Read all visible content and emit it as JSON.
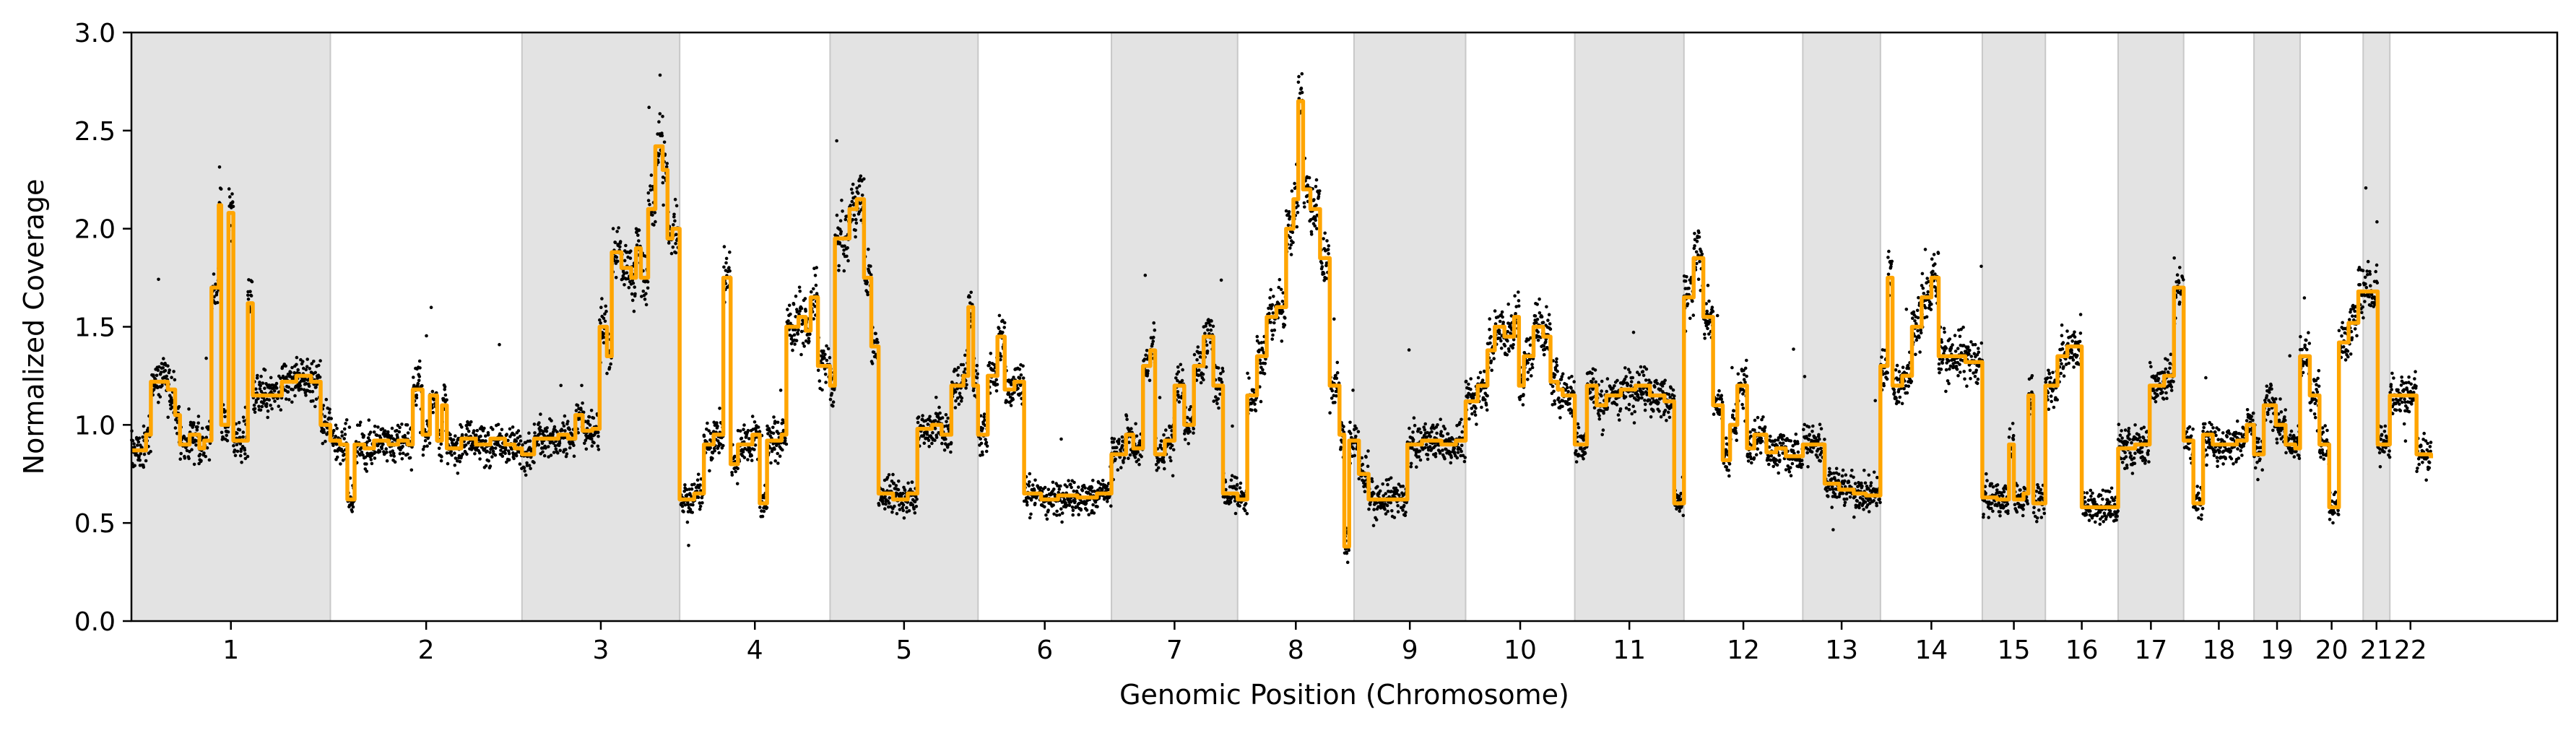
{
  "chart_data": {
    "type": "scatter",
    "title": "",
    "xlabel": "Genomic Position (Chromosome)",
    "ylabel": "Normalized Coverage",
    "ylim": [
      0.0,
      3.0
    ],
    "yticks": [
      "0.0",
      "0.5",
      "1.0",
      "1.5",
      "2.0",
      "2.5",
      "3.0"
    ],
    "xlim": [
      0,
      100
    ],
    "grid": false,
    "legend": "none",
    "colors": {
      "points": "#000000",
      "segments": "#FFA500",
      "band": "#e3e3e3",
      "band_edge": "#c8c8c8"
    },
    "chromosomes": [
      {
        "label": "1",
        "start": 0.0,
        "end": 8.2,
        "shaded": true
      },
      {
        "label": "2",
        "start": 8.2,
        "end": 16.1,
        "shaded": false
      },
      {
        "label": "3",
        "start": 16.1,
        "end": 22.6,
        "shaded": true
      },
      {
        "label": "4",
        "start": 22.6,
        "end": 28.8,
        "shaded": false
      },
      {
        "label": "5",
        "start": 28.8,
        "end": 34.9,
        "shaded": true
      },
      {
        "label": "6",
        "start": 34.9,
        "end": 40.4,
        "shaded": false
      },
      {
        "label": "7",
        "start": 40.4,
        "end": 45.6,
        "shaded": true
      },
      {
        "label": "8",
        "start": 45.6,
        "end": 50.4,
        "shaded": false
      },
      {
        "label": "9",
        "start": 50.4,
        "end": 55.0,
        "shaded": true
      },
      {
        "label": "10",
        "start": 55.0,
        "end": 59.5,
        "shaded": false
      },
      {
        "label": "11",
        "start": 59.5,
        "end": 64.0,
        "shaded": true
      },
      {
        "label": "12",
        "start": 64.0,
        "end": 68.9,
        "shaded": false
      },
      {
        "label": "13",
        "start": 68.9,
        "end": 72.1,
        "shaded": true
      },
      {
        "label": "14",
        "start": 72.1,
        "end": 76.3,
        "shaded": false
      },
      {
        "label": "15",
        "start": 76.3,
        "end": 78.9,
        "shaded": true
      },
      {
        "label": "16",
        "start": 78.9,
        "end": 81.9,
        "shaded": false
      },
      {
        "label": "17",
        "start": 81.9,
        "end": 84.6,
        "shaded": true
      },
      {
        "label": "18",
        "start": 84.6,
        "end": 87.5,
        "shaded": false
      },
      {
        "label": "19",
        "start": 87.5,
        "end": 89.4,
        "shaded": true
      },
      {
        "label": "20",
        "start": 89.4,
        "end": 92.0,
        "shaded": false
      },
      {
        "label": "21",
        "start": 92.0,
        "end": 93.1,
        "shaded": true
      },
      {
        "label": "22",
        "start": 93.1,
        "end": 94.8,
        "shaded": false
      }
    ],
    "segments": [
      [
        0.0,
        0.87
      ],
      [
        0.6,
        0.95
      ],
      [
        0.8,
        1.22
      ],
      [
        1.5,
        1.18
      ],
      [
        1.8,
        1.05
      ],
      [
        2.0,
        0.9
      ],
      [
        2.4,
        0.95
      ],
      [
        2.8,
        0.88
      ],
      [
        3.0,
        0.92
      ],
      [
        3.3,
        1.7
      ],
      [
        3.6,
        2.12
      ],
      [
        3.7,
        1.0
      ],
      [
        4.0,
        2.08
      ],
      [
        4.2,
        0.92
      ],
      [
        4.8,
        1.62
      ],
      [
        5.0,
        1.15
      ],
      [
        6.0,
        1.15
      ],
      [
        6.2,
        1.22
      ],
      [
        6.8,
        1.25
      ],
      [
        7.4,
        1.22
      ],
      [
        7.8,
        1.0
      ],
      [
        8.2,
        0.92
      ],
      [
        8.6,
        0.9
      ],
      [
        8.9,
        0.62
      ],
      [
        9.2,
        0.9
      ],
      [
        9.6,
        0.88
      ],
      [
        10.0,
        0.92
      ],
      [
        10.6,
        0.9
      ],
      [
        11.0,
        0.92
      ],
      [
        11.4,
        0.9
      ],
      [
        11.6,
        1.18
      ],
      [
        12.0,
        0.95
      ],
      [
        12.3,
        1.15
      ],
      [
        12.6,
        0.92
      ],
      [
        12.8,
        1.1
      ],
      [
        13.0,
        0.88
      ],
      [
        13.6,
        0.93
      ],
      [
        14.2,
        0.9
      ],
      [
        14.8,
        0.93
      ],
      [
        15.4,
        0.9
      ],
      [
        15.8,
        0.88
      ],
      [
        16.1,
        0.85
      ],
      [
        16.6,
        0.93
      ],
      [
        17.2,
        0.93
      ],
      [
        17.6,
        0.95
      ],
      [
        18.0,
        0.93
      ],
      [
        18.3,
        1.05
      ],
      [
        18.6,
        0.97
      ],
      [
        19.0,
        0.98
      ],
      [
        19.3,
        1.5
      ],
      [
        19.6,
        1.35
      ],
      [
        19.8,
        1.88
      ],
      [
        20.2,
        1.8
      ],
      [
        20.6,
        1.75
      ],
      [
        20.8,
        1.9
      ],
      [
        21.0,
        1.75
      ],
      [
        21.3,
        2.1
      ],
      [
        21.6,
        2.42
      ],
      [
        21.9,
        2.3
      ],
      [
        22.1,
        1.95
      ],
      [
        22.3,
        2.0
      ],
      [
        22.6,
        0.62
      ],
      [
        23.2,
        0.65
      ],
      [
        23.6,
        0.9
      ],
      [
        24.0,
        0.95
      ],
      [
        24.4,
        1.75
      ],
      [
        24.7,
        0.8
      ],
      [
        25.0,
        0.9
      ],
      [
        25.6,
        0.95
      ],
      [
        25.9,
        0.6
      ],
      [
        26.2,
        0.92
      ],
      [
        26.8,
        0.95
      ],
      [
        27.0,
        1.5
      ],
      [
        27.5,
        1.55
      ],
      [
        27.8,
        1.48
      ],
      [
        28.0,
        1.65
      ],
      [
        28.3,
        1.3
      ],
      [
        28.8,
        1.2
      ],
      [
        29.0,
        1.95
      ],
      [
        29.6,
        2.1
      ],
      [
        29.9,
        2.15
      ],
      [
        30.2,
        1.75
      ],
      [
        30.5,
        1.4
      ],
      [
        30.8,
        0.65
      ],
      [
        31.4,
        0.62
      ],
      [
        32.0,
        0.65
      ],
      [
        32.4,
        0.98
      ],
      [
        33.0,
        1.0
      ],
      [
        33.4,
        0.95
      ],
      [
        33.8,
        1.2
      ],
      [
        34.3,
        1.25
      ],
      [
        34.5,
        1.6
      ],
      [
        34.7,
        1.2
      ],
      [
        34.9,
        0.95
      ],
      [
        35.3,
        1.25
      ],
      [
        35.7,
        1.45
      ],
      [
        36.0,
        1.18
      ],
      [
        36.4,
        1.22
      ],
      [
        36.8,
        0.65
      ],
      [
        37.5,
        0.62
      ],
      [
        38.2,
        0.64
      ],
      [
        39.0,
        0.63
      ],
      [
        39.8,
        0.65
      ],
      [
        40.4,
        0.85
      ],
      [
        41.0,
        0.95
      ],
      [
        41.3,
        0.88
      ],
      [
        41.7,
        1.3
      ],
      [
        42.0,
        1.38
      ],
      [
        42.2,
        0.85
      ],
      [
        42.6,
        0.92
      ],
      [
        43.0,
        1.2
      ],
      [
        43.4,
        1.0
      ],
      [
        43.8,
        1.3
      ],
      [
        44.2,
        1.45
      ],
      [
        44.6,
        1.2
      ],
      [
        45.0,
        0.65
      ],
      [
        45.6,
        0.62
      ],
      [
        46.0,
        1.15
      ],
      [
        46.4,
        1.35
      ],
      [
        46.8,
        1.55
      ],
      [
        47.2,
        1.6
      ],
      [
        47.6,
        2.0
      ],
      [
        47.9,
        2.15
      ],
      [
        48.1,
        2.65
      ],
      [
        48.3,
        2.2
      ],
      [
        48.6,
        2.1
      ],
      [
        49.0,
        1.85
      ],
      [
        49.4,
        1.2
      ],
      [
        49.8,
        0.95
      ],
      [
        50.0,
        0.38
      ],
      [
        50.2,
        0.92
      ],
      [
        50.6,
        0.75
      ],
      [
        51.0,
        0.62
      ],
      [
        51.8,
        0.62
      ],
      [
        52.6,
        0.9
      ],
      [
        53.2,
        0.92
      ],
      [
        54.0,
        0.9
      ],
      [
        54.6,
        0.92
      ],
      [
        55.0,
        1.12
      ],
      [
        55.5,
        1.2
      ],
      [
        55.9,
        1.38
      ],
      [
        56.2,
        1.5
      ],
      [
        56.6,
        1.45
      ],
      [
        57.0,
        1.55
      ],
      [
        57.2,
        1.2
      ],
      [
        57.4,
        1.35
      ],
      [
        57.8,
        1.5
      ],
      [
        58.2,
        1.45
      ],
      [
        58.5,
        1.22
      ],
      [
        58.8,
        1.18
      ],
      [
        59.0,
        1.15
      ],
      [
        59.5,
        0.9
      ],
      [
        60.0,
        1.2
      ],
      [
        60.4,
        1.1
      ],
      [
        60.8,
        1.15
      ],
      [
        61.4,
        1.18
      ],
      [
        62.0,
        1.2
      ],
      [
        62.6,
        1.15
      ],
      [
        63.2,
        1.12
      ],
      [
        63.6,
        0.6
      ],
      [
        64.0,
        1.65
      ],
      [
        64.4,
        1.85
      ],
      [
        64.8,
        1.55
      ],
      [
        65.2,
        1.1
      ],
      [
        65.6,
        0.82
      ],
      [
        65.9,
        1.0
      ],
      [
        66.2,
        1.2
      ],
      [
        66.6,
        0.88
      ],
      [
        66.9,
        0.95
      ],
      [
        67.4,
        0.86
      ],
      [
        67.8,
        0.88
      ],
      [
        68.2,
        0.84
      ],
      [
        68.9,
        0.9
      ],
      [
        69.4,
        0.9
      ],
      [
        69.8,
        0.7
      ],
      [
        70.4,
        0.67
      ],
      [
        71.0,
        0.65
      ],
      [
        71.5,
        0.64
      ],
      [
        72.1,
        1.3
      ],
      [
        72.4,
        1.75
      ],
      [
        72.6,
        1.2
      ],
      [
        73.0,
        1.25
      ],
      [
        73.4,
        1.5
      ],
      [
        73.8,
        1.65
      ],
      [
        74.2,
        1.75
      ],
      [
        74.5,
        1.35
      ],
      [
        75.2,
        1.35
      ],
      [
        75.6,
        1.32
      ],
      [
        76.3,
        0.63
      ],
      [
        76.9,
        0.62
      ],
      [
        77.4,
        0.9
      ],
      [
        77.6,
        0.62
      ],
      [
        78.0,
        0.65
      ],
      [
        78.2,
        1.15
      ],
      [
        78.4,
        0.6
      ],
      [
        78.9,
        1.2
      ],
      [
        79.4,
        1.35
      ],
      [
        79.8,
        1.4
      ],
      [
        80.4,
        0.58
      ],
      [
        81.2,
        0.58
      ],
      [
        81.9,
        0.88
      ],
      [
        82.6,
        0.9
      ],
      [
        83.2,
        1.2
      ],
      [
        83.8,
        1.25
      ],
      [
        84.2,
        1.7
      ],
      [
        84.6,
        0.92
      ],
      [
        85.0,
        0.6
      ],
      [
        85.4,
        0.95
      ],
      [
        85.8,
        0.9
      ],
      [
        86.4,
        0.9
      ],
      [
        86.8,
        0.92
      ],
      [
        87.2,
        1.0
      ],
      [
        87.5,
        0.85
      ],
      [
        87.9,
        1.1
      ],
      [
        88.4,
        1.0
      ],
      [
        88.8,
        0.9
      ],
      [
        89.2,
        0.88
      ],
      [
        89.4,
        1.35
      ],
      [
        89.8,
        1.15
      ],
      [
        90.2,
        0.9
      ],
      [
        90.6,
        0.58
      ],
      [
        91.0,
        1.42
      ],
      [
        91.4,
        1.52
      ],
      [
        91.8,
        1.68
      ],
      [
        92.2,
        1.68
      ],
      [
        92.6,
        0.9
      ],
      [
        93.1,
        1.15
      ],
      [
        93.6,
        1.15
      ],
      [
        94.2,
        0.85
      ],
      [
        94.8,
        0.83
      ]
    ]
  }
}
